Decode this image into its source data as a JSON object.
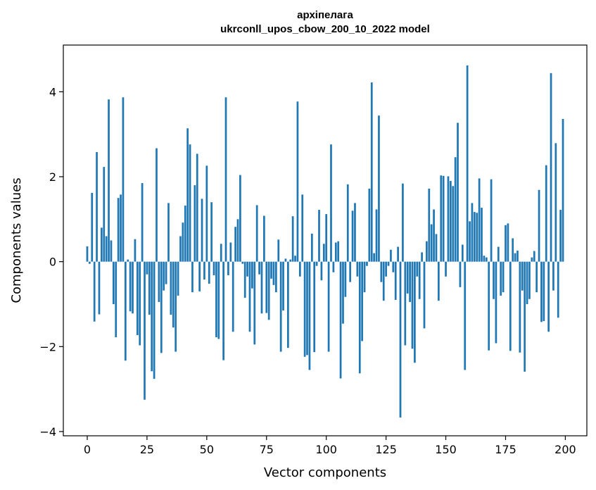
{
  "chart_data": {
    "type": "bar",
    "title": [
      "архіпелага",
      "ukrconll_upos_cbow_200_10_2022 model"
    ],
    "xlabel": "Vector components",
    "ylabel": "Components values",
    "xlim": [
      -10,
      209
    ],
    "ylim": [
      -4.1,
      5.1
    ],
    "xticks": [
      0,
      25,
      50,
      75,
      100,
      125,
      150,
      175,
      200
    ],
    "yticks": [
      -4,
      -2,
      0,
      2,
      4
    ],
    "ytick_labels": [
      "−4",
      "−2",
      "0",
      "2",
      "4"
    ],
    "bar_color": "#1f77b4",
    "grid": false,
    "values": [
      0.36,
      -0.05,
      1.62,
      -1.41,
      2.58,
      -1.24,
      0.8,
      2.23,
      0.6,
      3.82,
      0.5,
      -1.0,
      -1.78,
      1.5,
      1.58,
      3.87,
      -2.33,
      0.05,
      -1.17,
      -1.22,
      0.53,
      -1.73,
      -1.97,
      1.85,
      -3.25,
      -0.3,
      -1.25,
      -2.58,
      -2.76,
      2.67,
      -0.95,
      -2.15,
      -0.68,
      -0.53,
      1.38,
      -1.25,
      -1.55,
      -2.12,
      -0.8,
      0.6,
      0.92,
      1.32,
      3.14,
      2.76,
      -0.72,
      1.8,
      2.54,
      -0.7,
      1.48,
      -0.42,
      2.26,
      -0.52,
      1.4,
      -0.32,
      -1.78,
      -1.82,
      0.42,
      -2.32,
      3.87,
      -0.32,
      0.45,
      -1.65,
      0.82,
      1.0,
      2.04,
      -0.05,
      -0.85,
      -0.35,
      -1.65,
      -0.63,
      -1.95,
      1.33,
      -0.3,
      -1.22,
      1.08,
      -1.21,
      -1.37,
      -0.4,
      -0.55,
      -0.72,
      0.52,
      -2.12,
      -1.15,
      0.07,
      -2.03,
      0.05,
      1.07,
      0.14,
      3.77,
      -0.35,
      1.58,
      -2.24,
      -2.2,
      -2.55,
      0.66,
      -2.13,
      -0.1,
      1.22,
      -0.44,
      0.42,
      1.12,
      -2.12,
      2.76,
      -0.25,
      0.45,
      0.48,
      -2.75,
      -1.46,
      -0.83,
      1.82,
      -0.48,
      1.2,
      1.38,
      -0.35,
      -2.63,
      -1.87,
      -0.72,
      -0.1,
      1.72,
      4.22,
      0.2,
      1.23,
      3.44,
      -0.48,
      -0.92,
      -0.35,
      -0.1,
      0.28,
      -0.25,
      -0.9,
      0.35,
      -3.67,
      1.84,
      -1.97,
      -0.75,
      -0.95,
      -2.05,
      -2.38,
      -0.35,
      -0.88,
      0.22,
      -1.57,
      0.48,
      1.72,
      0.88,
      1.23,
      0.65,
      -0.92,
      2.03,
      2.02,
      -0.35,
      2.01,
      1.9,
      1.78,
      2.46,
      3.27,
      -0.6,
      0.4,
      -2.55,
      4.62,
      0.95,
      1.38,
      1.17,
      1.15,
      1.96,
      1.27,
      0.14,
      0.1,
      -2.09,
      1.94,
      -0.88,
      -1.92,
      0.35,
      -0.8,
      -0.72,
      0.86,
      0.9,
      -2.1,
      0.55,
      0.2,
      0.26,
      -2.14,
      -0.68,
      -2.59,
      -1.0,
      -0.88,
      0.1,
      0.25,
      -0.72,
      1.69,
      -1.42,
      -1.4,
      2.27,
      -1.65,
      4.44,
      -0.68,
      2.79,
      -1.32,
      1.22,
      3.36
    ]
  }
}
